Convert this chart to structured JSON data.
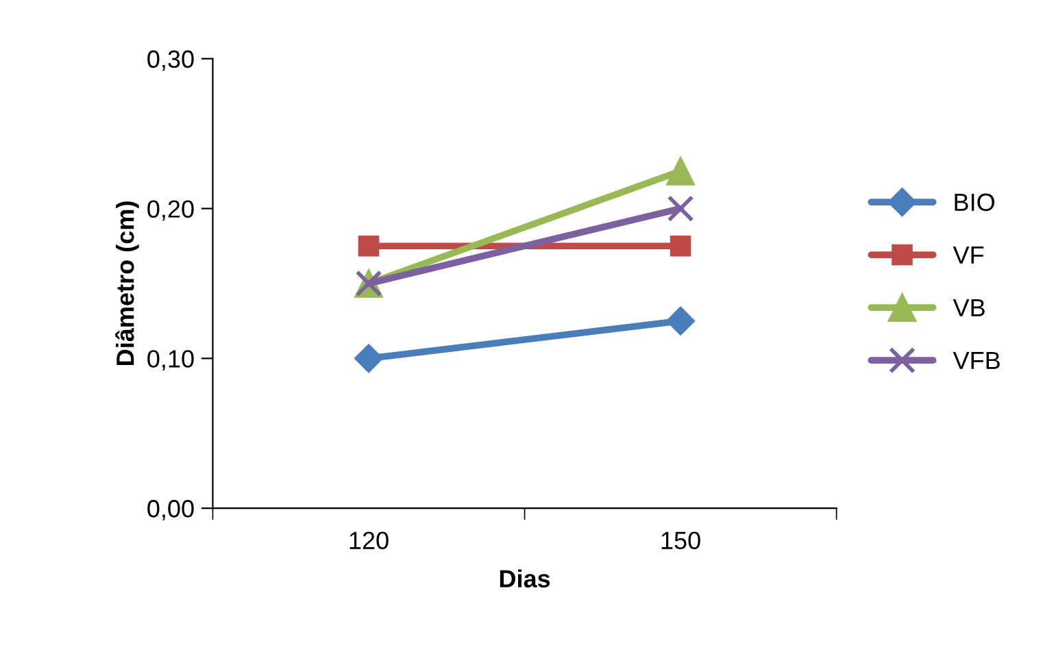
{
  "chart_data": {
    "type": "line",
    "xlabel": "Dias",
    "ylabel": "Diâmetro (cm)",
    "categories": [
      "120",
      "150"
    ],
    "series": [
      {
        "name": "BIO",
        "color": "#4a7ebb",
        "marker": "diamond",
        "values": [
          0.1,
          0.125
        ]
      },
      {
        "name": "VF",
        "color": "#be4b48",
        "marker": "square",
        "values": [
          0.175,
          0.175
        ]
      },
      {
        "name": "VB",
        "color": "#98b954",
        "marker": "triangle",
        "values": [
          0.15,
          0.225
        ]
      },
      {
        "name": "VFB",
        "color": "#7d60a0",
        "marker": "cross",
        "values": [
          0.15,
          0.2
        ]
      }
    ],
    "ylim": [
      0,
      0.3
    ],
    "yticks": [
      {
        "value": 0,
        "label": "0,00"
      },
      {
        "value": 0.1,
        "label": "0,10"
      },
      {
        "value": 0.2,
        "label": "0,20"
      },
      {
        "value": 0.3,
        "label": "0,30"
      }
    ],
    "grid": false,
    "legend": "right",
    "line_style": "solid"
  }
}
